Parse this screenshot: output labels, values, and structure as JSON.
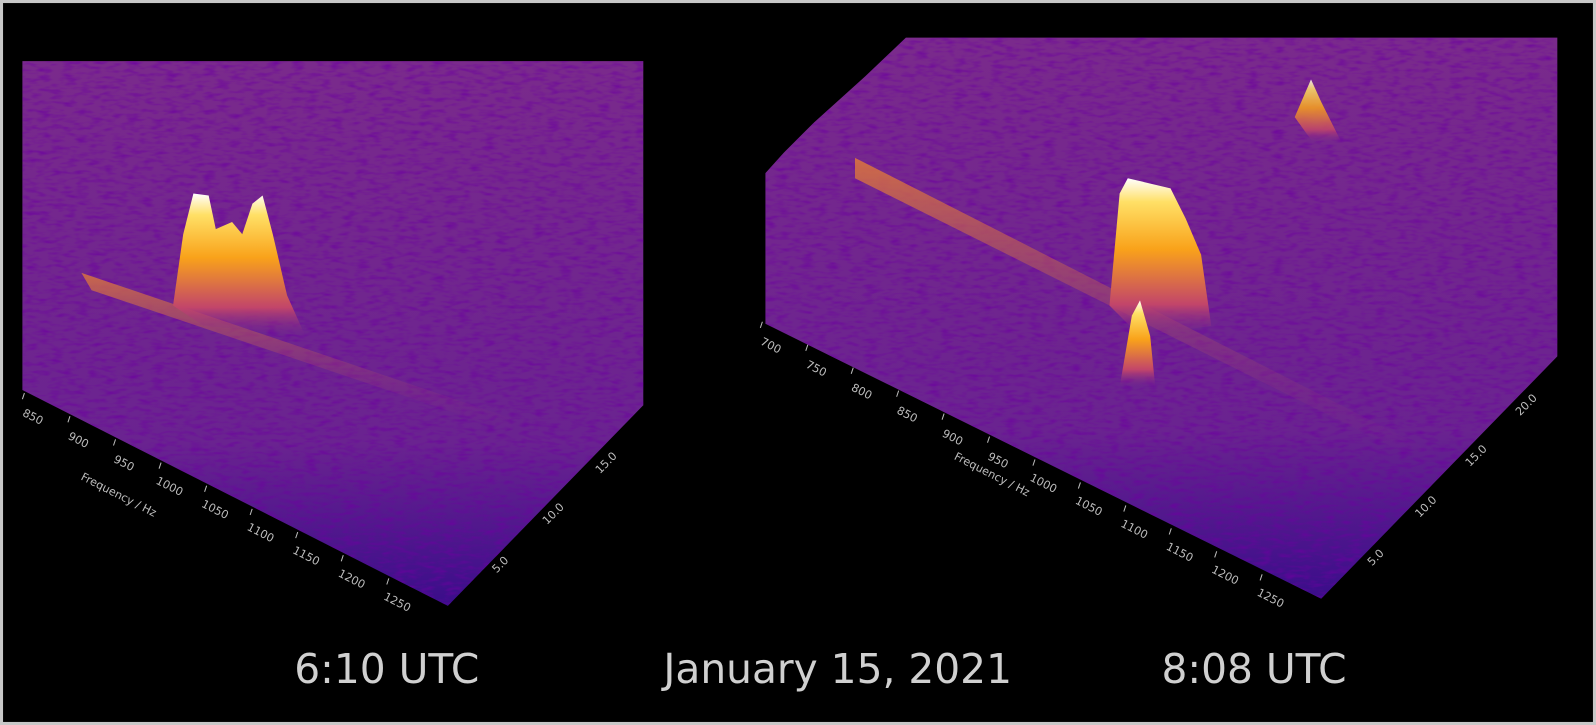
{
  "caption": "January 15, 2021",
  "panels": [
    {
      "caption": "6:10 UTC",
      "frequency_label": "Frequency / Hz",
      "frequency_ticks": [
        "850",
        "900",
        "950",
        "1000",
        "1050",
        "1100",
        "1150",
        "1200",
        "1250"
      ],
      "time_ticks": [
        "5.0",
        "10.0",
        "15.0"
      ]
    },
    {
      "caption": "8:08 UTC",
      "frequency_label": "Frequency / Hz",
      "frequency_ticks": [
        "700",
        "750",
        "800",
        "850",
        "900",
        "950",
        "1000",
        "1050",
        "1100",
        "1150",
        "1200",
        "1250"
      ],
      "time_ticks": [
        "5.0",
        "10.0",
        "15.0",
        "20.0"
      ]
    }
  ]
}
